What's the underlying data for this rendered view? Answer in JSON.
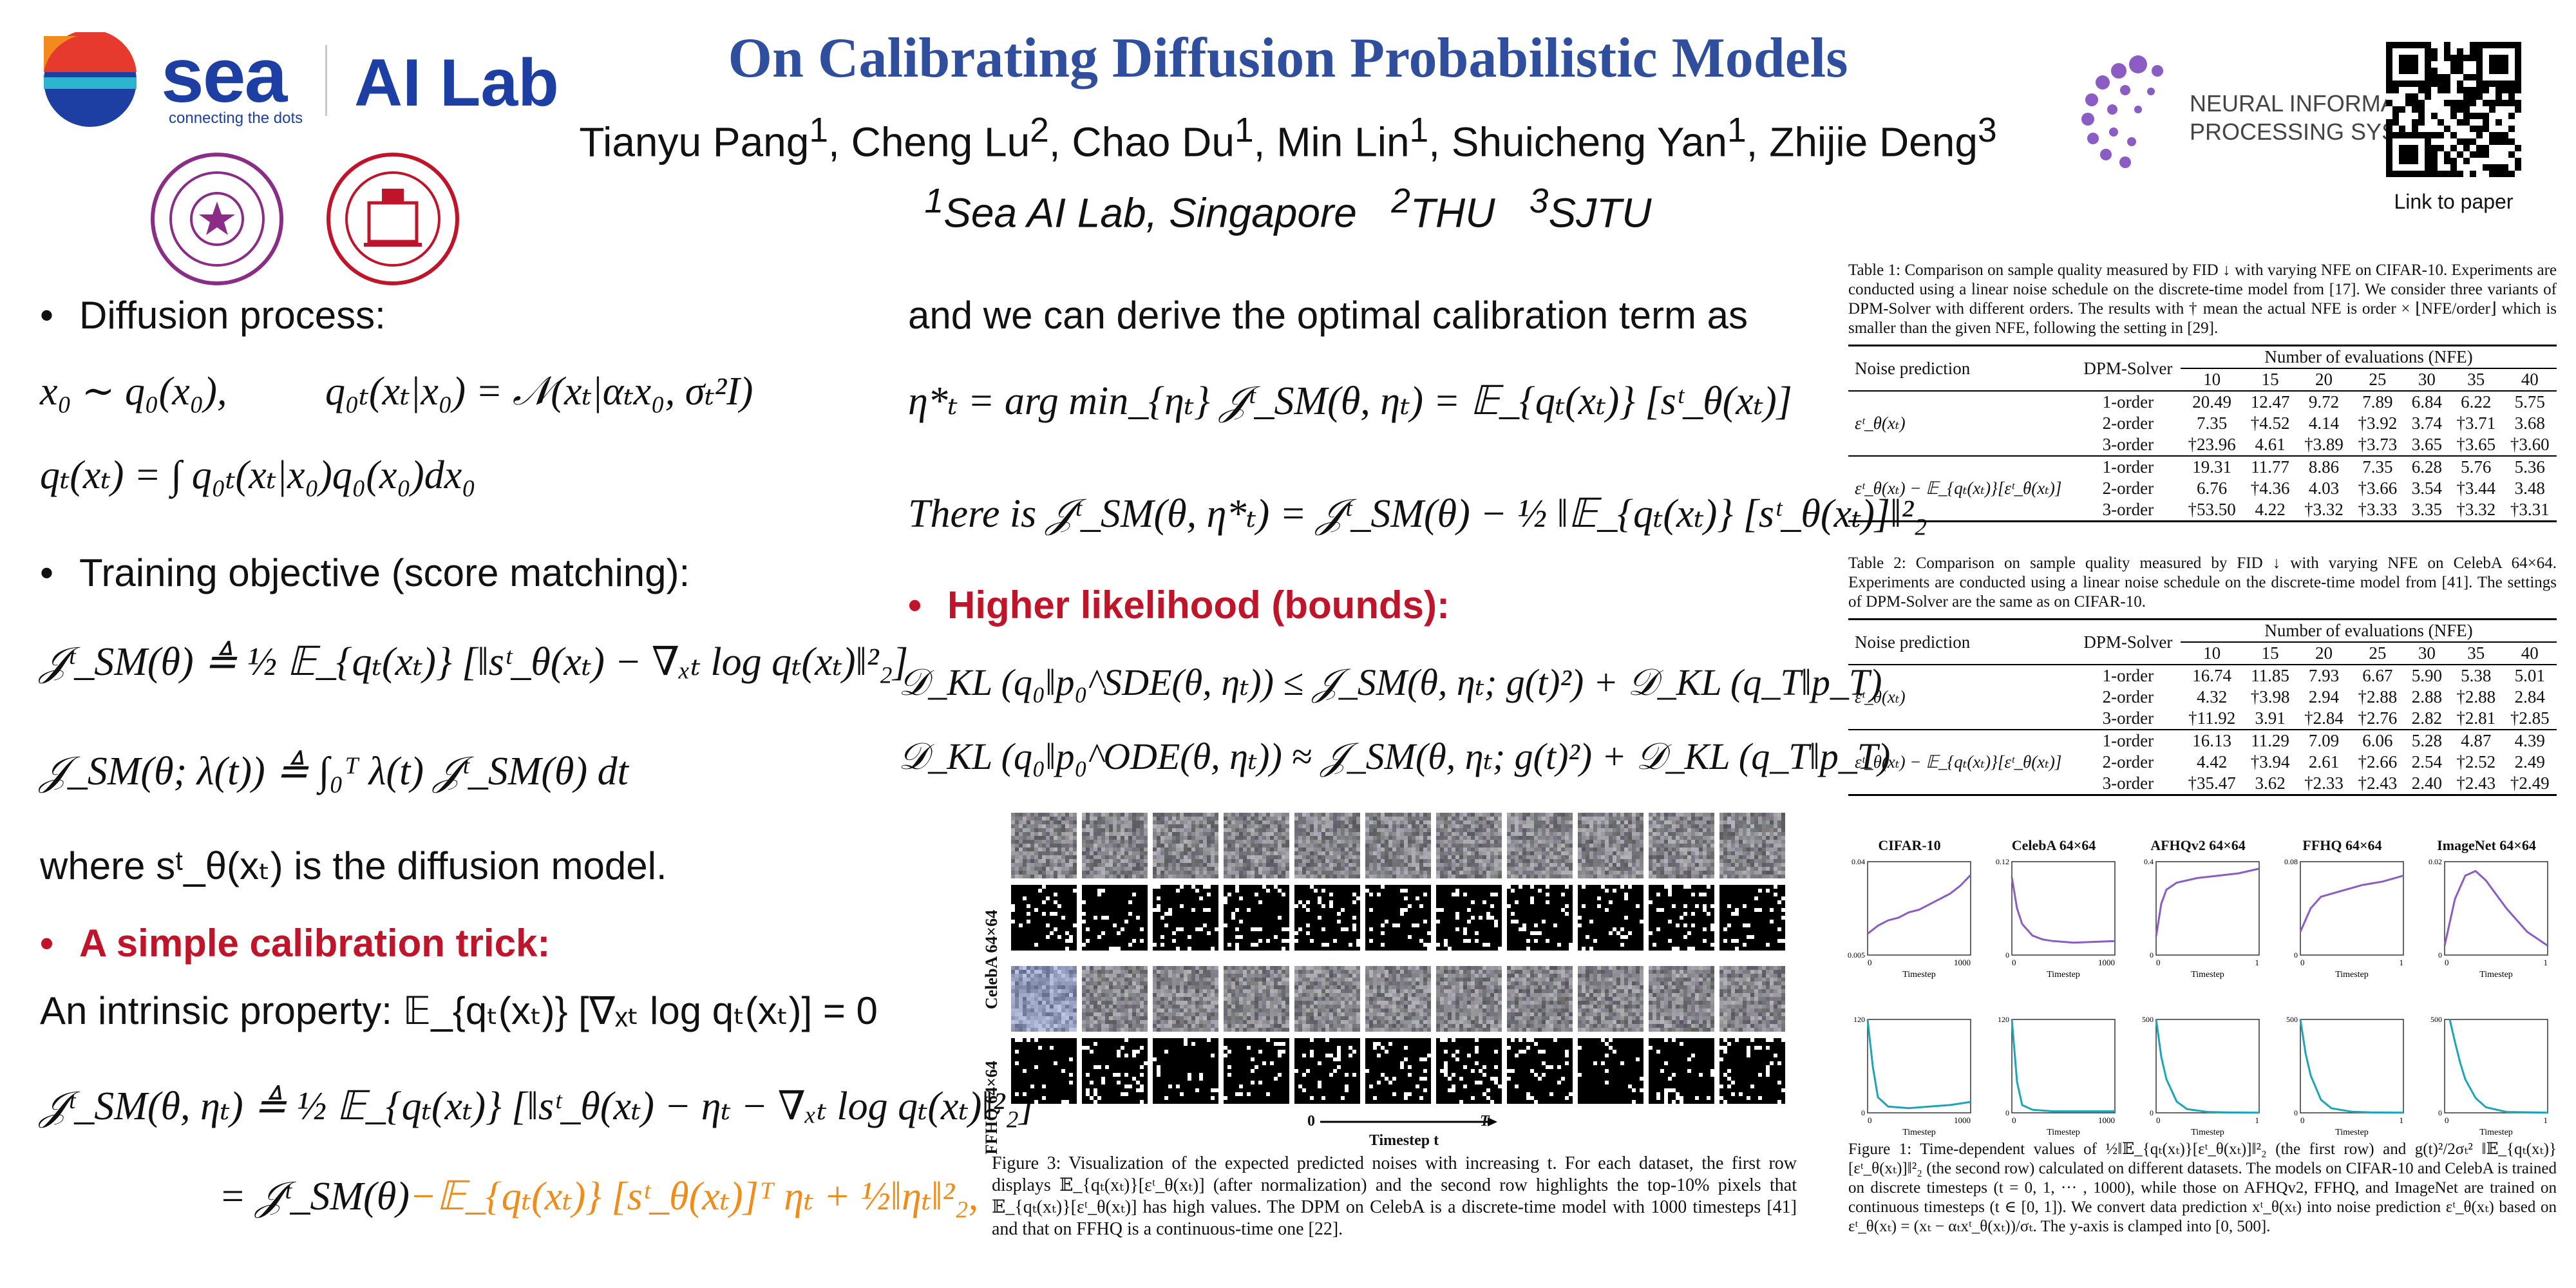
{
  "header": {
    "title": "On Calibrating Diffusion Probabilistic Models",
    "authors": [
      {
        "name": "Tianyu Pang",
        "sup": "1"
      },
      {
        "name": "Cheng Lu",
        "sup": "2"
      },
      {
        "name": "Chao Du",
        "sup": "1"
      },
      {
        "name": "Min Lin",
        "sup": "1"
      },
      {
        "name": "Shuicheng Yan",
        "sup": "1"
      },
      {
        "name": "Zhijie Deng",
        "sup": "3"
      }
    ],
    "affiliations": [
      {
        "sup": "1",
        "name": "Sea AI Lab, Singapore"
      },
      {
        "sup": "2",
        "name": "THU"
      },
      {
        "sup": "3",
        "name": "SJTU"
      }
    ],
    "sea_logo_text": "sea",
    "sea_tagline": "connecting the dots",
    "ailab_text": "AI Lab",
    "neurips_line1": "NEURAL INFORMATION",
    "neurips_line2": "PROCESSING SYSTEMS",
    "qr_caption": "Link to paper"
  },
  "colors": {
    "title_blue": "#2f4f9e",
    "red": "#c0142a",
    "orange": "#f08c1a",
    "purple": "#8a5cc4",
    "teal": "#1aa6b7",
    "seal_purple": "#8b2c86"
  },
  "left": {
    "bullet1": "Diffusion process:",
    "eq1a": "x₀ ∼ q₀(x₀),",
    "eq1b": "q₀ₜ(xₜ|x₀) = 𝒩(xₜ|αₜx₀, σₜ²I)",
    "eq2": "qₜ(xₜ) = ∫ q₀ₜ(xₜ|x₀)q₀(x₀)dx₀",
    "bullet2": "Training objective (score matching):",
    "eq3": "𝒥ᵗ_SM(θ) ≜ ½ 𝔼_{qₜ(xₜ)} [‖sᵗ_θ(xₜ) − ∇ₓₜ log qₜ(xₜ)‖²₂]",
    "eq4": "𝒥_SM(θ; λ(t)) ≜ ∫₀ᵀ λ(t) 𝒥ᵗ_SM(θ) dt",
    "where_text": "where sᵗ_θ(xₜ) is the diffusion model.",
    "bullet3": "A simple calibration trick:",
    "intrinsic": "An intrinsic property:  𝔼_{qₜ(xₜ)} [∇ₓₜ log qₜ(xₜ)] = 0",
    "eq5": "𝒥ᵗ_SM(θ, ηₜ) ≜ ½ 𝔼_{qₜ(xₜ)} [‖sᵗ_θ(xₜ) − ηₜ − ∇ₓₜ log qₜ(xₜ)‖²₂]",
    "eq6a": "= 𝒥ᵗ_SM(θ)",
    "eq6b": "−𝔼_{qₜ(xₜ)} [sᵗ_θ(xₜ)]ᵀ ηₜ + ½‖ηₜ‖²₂,"
  },
  "middle": {
    "intro": "and we can derive the optimal calibration term as",
    "eq7": "η*ₜ = arg min_{ηₜ} 𝒥ᵗ_SM(θ, ηₜ) = 𝔼_{qₜ(xₜ)} [sᵗ_θ(xₜ)]",
    "eq8": "There is 𝒥ᵗ_SM(θ, η*ₜ) = 𝒥ᵗ_SM(θ) − ½ ‖𝔼_{qₜ(xₜ)} [sᵗ_θ(xₜ)]‖²₂",
    "bullet4": "Higher likelihood (bounds):",
    "eq9": "𝒟_KL (q₀‖p₀^SDE(θ, ηₜ)) ≤ 𝒥_SM(θ, ηₜ; g(t)²) + 𝒟_KL (q_T‖p_T)",
    "eq10": "𝒟_KL (q₀‖p₀^ODE(θ, ηₜ)) ≈ 𝒥_SM(θ, ηₜ; g(t)²) + 𝒟_KL (q_T‖p_T)",
    "fig3_label_celeba": "CelebA 64×64",
    "fig3_label_ffhq": "FFHQ 64×64",
    "fig3_axis_start": "0",
    "fig3_axis_label": "Timestep t",
    "fig3_axis_end": "T",
    "fig3_caption": "Figure 3: Visualization of the expected predicted noises with increasing t. For each dataset, the first row displays 𝔼_{qₜ(xₜ)}[εᵗ_θ(xₜ)] (after normalization) and the second row highlights the top-10% pixels that 𝔼_{qₜ(xₜ)}[εᵗ_θ(xₜ)] has high values. The DPM on CelebA is a discrete-time model with 1000 timesteps [41] and that on FFHQ is a continuous-time one [22]."
  },
  "tables": [
    {
      "caption": "Table 1: Comparison on sample quality measured by FID ↓ with varying NFE on CIFAR-10. Experiments are conducted using a linear noise schedule on the discrete-time model from [17]. We consider three variants of DPM-Solver with different orders. The results with † mean the actual NFE is order × ⌊NFE/order⌋ which is smaller than the given NFE, following the setting in [29].",
      "col_noise": "Noise prediction",
      "col_solver": "DPM-Solver",
      "col_group": "Number of evaluations (NFE)",
      "nfe": [
        "10",
        "15",
        "20",
        "25",
        "30",
        "35",
        "40"
      ],
      "groups": [
        {
          "label": "εᵗ_θ(xₜ)",
          "rows": [
            {
              "order": "1-order",
              "vals": [
                "20.49",
                "12.47",
                "9.72",
                "7.89",
                "6.84",
                "6.22",
                "5.75"
              ]
            },
            {
              "order": "2-order",
              "vals": [
                "7.35",
                "†4.52",
                "4.14",
                "†3.92",
                "3.74",
                "†3.71",
                "3.68"
              ]
            },
            {
              "order": "3-order",
              "vals": [
                "†23.96",
                "4.61",
                "†3.89",
                "†3.73",
                "3.65",
                "†3.65",
                "†3.60"
              ]
            }
          ]
        },
        {
          "label": "εᵗ_θ(xₜ) − 𝔼_{qₜ(xₜ)}[εᵗ_θ(xₜ)]",
          "rows": [
            {
              "order": "1-order",
              "vals": [
                "19.31",
                "11.77",
                "8.86",
                "7.35",
                "6.28",
                "5.76",
                "5.36"
              ]
            },
            {
              "order": "2-order",
              "vals": [
                "6.76",
                "†4.36",
                "4.03",
                "†3.66",
                "3.54",
                "†3.44",
                "3.48"
              ]
            },
            {
              "order": "3-order",
              "vals": [
                "†53.50",
                "4.22",
                "†3.32",
                "†3.33",
                "3.35",
                "†3.32",
                "†3.31"
              ]
            }
          ]
        }
      ]
    },
    {
      "caption": "Table 2: Comparison on sample quality measured by FID ↓ with varying NFE on CelebA 64×64. Experiments are conducted using a linear noise schedule on the discrete-time model from [41]. The settings of DPM-Solver are the same as on CIFAR-10.",
      "col_noise": "Noise prediction",
      "col_solver": "DPM-Solver",
      "col_group": "Number of evaluations (NFE)",
      "nfe": [
        "10",
        "15",
        "20",
        "25",
        "30",
        "35",
        "40"
      ],
      "groups": [
        {
          "label": "εᵗ_θ(xₜ)",
          "rows": [
            {
              "order": "1-order",
              "vals": [
                "16.74",
                "11.85",
                "7.93",
                "6.67",
                "5.90",
                "5.38",
                "5.01"
              ]
            },
            {
              "order": "2-order",
              "vals": [
                "4.32",
                "†3.98",
                "2.94",
                "†2.88",
                "2.88",
                "†2.88",
                "2.84"
              ]
            },
            {
              "order": "3-order",
              "vals": [
                "†11.92",
                "3.91",
                "†2.84",
                "†2.76",
                "2.82",
                "†2.81",
                "†2.85"
              ]
            }
          ]
        },
        {
          "label": "εᵗ_θ(xₜ) − 𝔼_{qₜ(xₜ)}[εᵗ_θ(xₜ)]",
          "rows": [
            {
              "order": "1-order",
              "vals": [
                "16.13",
                "11.29",
                "7.09",
                "6.06",
                "5.28",
                "4.87",
                "4.39"
              ]
            },
            {
              "order": "2-order",
              "vals": [
                "4.42",
                "†3.94",
                "2.61",
                "†2.66",
                "2.54",
                "†2.52",
                "2.49"
              ]
            },
            {
              "order": "3-order",
              "vals": [
                "†35.47",
                "3.62",
                "†2.33",
                "†2.43",
                "2.40",
                "†2.43",
                "†2.49"
              ]
            }
          ]
        }
      ]
    }
  ],
  "chart_data": [
    {
      "type": "line",
      "title": "CIFAR-10",
      "xlabel": "Timestep",
      "xlim": [
        0,
        1000
      ],
      "ylim": [
        0.005,
        0.04
      ],
      "x": [
        0,
        100,
        200,
        300,
        400,
        500,
        600,
        700,
        800,
        900,
        1000
      ],
      "values": [
        0.013,
        0.016,
        0.018,
        0.019,
        0.021,
        0.022,
        0.024,
        0.026,
        0.028,
        0.031,
        0.035
      ],
      "color": "#8a5cc4"
    },
    {
      "type": "line",
      "title": "CelebA 64×64",
      "xlabel": "Timestep",
      "xlim": [
        0,
        1000
      ],
      "ylim": [
        0.0,
        0.12
      ],
      "x": [
        0,
        50,
        100,
        200,
        300,
        400,
        600,
        800,
        1000
      ],
      "values": [
        0.1,
        0.06,
        0.04,
        0.025,
        0.02,
        0.018,
        0.016,
        0.017,
        0.018
      ],
      "color": "#8a5cc4"
    },
    {
      "type": "line",
      "title": "AFHQv2 64×64",
      "xlabel": "Timestep",
      "xlim": [
        0,
        1
      ],
      "ylim": [
        0.0,
        0.4
      ],
      "x": [
        0,
        0.05,
        0.1,
        0.2,
        0.4,
        0.6,
        0.8,
        1.0
      ],
      "values": [
        0.08,
        0.22,
        0.28,
        0.31,
        0.33,
        0.34,
        0.35,
        0.37
      ],
      "color": "#8a5cc4"
    },
    {
      "type": "line",
      "title": "FFHQ 64×64",
      "xlabel": "Timestep",
      "xlim": [
        0,
        1
      ],
      "ylim": [
        0.0,
        0.08
      ],
      "x": [
        0,
        0.1,
        0.2,
        0.4,
        0.6,
        0.8,
        1.0
      ],
      "values": [
        0.02,
        0.04,
        0.05,
        0.055,
        0.06,
        0.063,
        0.068
      ],
      "color": "#8a5cc4"
    },
    {
      "type": "line",
      "title": "ImageNet 64×64",
      "xlabel": "Timestep",
      "xlim": [
        0,
        1
      ],
      "ylim": [
        0.0,
        0.02
      ],
      "x": [
        0,
        0.1,
        0.2,
        0.3,
        0.4,
        0.5,
        0.6,
        0.8,
        1.0
      ],
      "values": [
        0.002,
        0.012,
        0.017,
        0.018,
        0.016,
        0.013,
        0.01,
        0.005,
        0.002
      ],
      "color": "#8a5cc4"
    },
    {
      "type": "line",
      "xlabel": "Timestep",
      "xlim": [
        0,
        1000
      ],
      "ylim": [
        0,
        120
      ],
      "x": [
        0,
        50,
        100,
        200,
        400,
        600,
        800,
        1000
      ],
      "values": [
        120,
        60,
        20,
        8,
        6,
        8,
        10,
        14
      ],
      "color": "#1aa6b7"
    },
    {
      "type": "line",
      "xlabel": "Timestep",
      "xlim": [
        0,
        1000
      ],
      "ylim": [
        0,
        120
      ],
      "x": [
        0,
        50,
        100,
        200,
        400,
        600,
        800,
        1000
      ],
      "values": [
        120,
        40,
        10,
        4,
        2,
        2,
        2,
        2
      ],
      "color": "#1aa6b7"
    },
    {
      "type": "line",
      "xlabel": "Timestep",
      "xlim": [
        0,
        1
      ],
      "ylim": [
        0,
        500
      ],
      "x": [
        0,
        0.05,
        0.1,
        0.2,
        0.3,
        0.5,
        0.7,
        1.0
      ],
      "values": [
        500,
        300,
        180,
        60,
        20,
        5,
        2,
        1
      ],
      "color": "#1aa6b7"
    },
    {
      "type": "line",
      "xlabel": "Timestep",
      "xlim": [
        0,
        1
      ],
      "ylim": [
        0,
        500
      ],
      "x": [
        0,
        0.05,
        0.1,
        0.2,
        0.3,
        0.5,
        0.7,
        1.0
      ],
      "values": [
        500,
        320,
        200,
        70,
        25,
        6,
        2,
        1
      ],
      "color": "#1aa6b7"
    },
    {
      "type": "line",
      "xlabel": "Timestep",
      "xlim": [
        0,
        1
      ],
      "ylim": [
        0,
        500
      ],
      "x": [
        0.05,
        0.1,
        0.15,
        0.2,
        0.3,
        0.4,
        0.6,
        1.0
      ],
      "values": [
        500,
        380,
        270,
        180,
        80,
        30,
        5,
        1
      ],
      "color": "#1aa6b7"
    }
  ],
  "fig1_caption": "Figure 1: Time-dependent values of ½‖𝔼_{qₜ(xₜ)}[εᵗ_θ(xₜ)]‖²₂ (the first row) and g(t)²/2σₜ² ‖𝔼_{qₜ(xₜ)}[εᵗ_θ(xₜ)]‖²₂ (the second row) calculated on different datasets. The models on CIFAR-10 and CelebA is trained on discrete timesteps (t = 0, 1, ··· , 1000), while those on AFHQv2, FFHQ, and ImageNet are trained on continuous timesteps (t ∈ [0, 1]). We convert data prediction xᵗ_θ(xₜ) into noise prediction εᵗ_θ(xₜ) based on εᵗ_θ(xₜ) = (xₜ − αₜxᵗ_θ(xₜ))/σₜ. The y-axis is clamped into [0, 500]."
}
